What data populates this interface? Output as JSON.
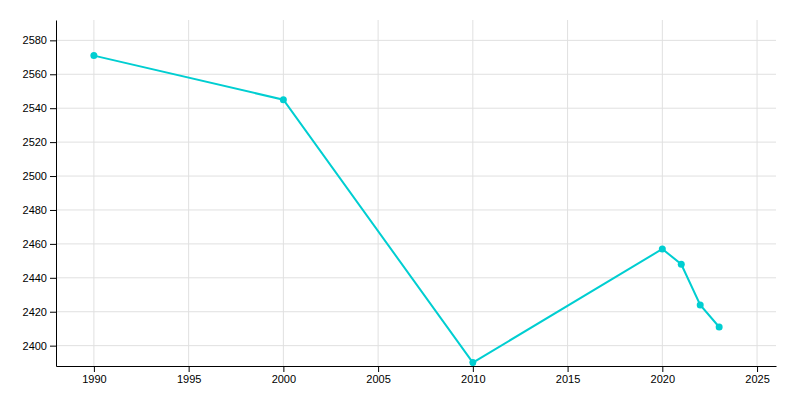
{
  "chart_data": {
    "type": "line",
    "x": [
      1990,
      2000,
      2010,
      2020,
      2021,
      2022,
      2023
    ],
    "values": [
      2571,
      2545,
      2390,
      2457,
      2448,
      2424,
      2411
    ],
    "color": "#00CED1",
    "marker": "circle",
    "xlim": [
      1988,
      2026
    ],
    "ylim": [
      2388,
      2592
    ],
    "xticks": [
      1990,
      1995,
      2000,
      2005,
      2010,
      2015,
      2020,
      2025
    ],
    "yticks": [
      2400,
      2420,
      2440,
      2460,
      2480,
      2500,
      2520,
      2540,
      2560,
      2580
    ],
    "grid": true
  }
}
